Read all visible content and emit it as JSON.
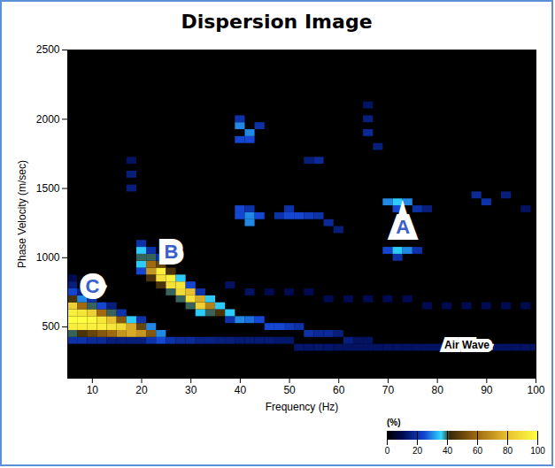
{
  "chart_data": {
    "type": "heatmap",
    "title": "Dispersion Image",
    "x_label": "Frequency (Hz)",
    "y_label": "Phase Velocity (m/sec)",
    "xlim": [
      5,
      100
    ],
    "xticks": [
      10,
      20,
      30,
      40,
      50,
      60,
      70,
      80,
      90,
      100
    ],
    "ylim": [
      130,
      2500
    ],
    "yticks": [
      500,
      1000,
      1500,
      2000,
      2500
    ],
    "colorbar": {
      "range": [
        0,
        100
      ],
      "ticks": [
        0,
        20,
        40,
        60,
        80,
        100
      ],
      "label": "(%)"
    },
    "annotations": [
      {
        "text": "A",
        "x": 73,
        "y": 1220,
        "color": "#3a5fcd"
      },
      {
        "text": "B",
        "x": 26,
        "y": 1040,
        "color": "#3a5fcd"
      },
      {
        "text": "C",
        "x": 10,
        "y": 790,
        "color": "#3a5fcd"
      },
      {
        "text": "Air Wave",
        "x": 86,
        "y": 370,
        "color": "#000000"
      }
    ],
    "cells": [
      [
        6,
        400,
        20
      ],
      [
        6,
        450,
        40
      ],
      [
        6,
        500,
        95
      ],
      [
        6,
        550,
        100
      ],
      [
        6,
        600,
        95
      ],
      [
        6,
        650,
        85
      ],
      [
        6,
        700,
        45
      ],
      [
        6,
        750,
        25
      ],
      [
        6,
        800,
        15
      ],
      [
        6,
        850,
        10
      ],
      [
        8,
        400,
        20
      ],
      [
        8,
        450,
        45
      ],
      [
        8,
        500,
        95
      ],
      [
        8,
        550,
        100
      ],
      [
        8,
        600,
        92
      ],
      [
        8,
        650,
        60
      ],
      [
        8,
        700,
        30
      ],
      [
        8,
        750,
        15
      ],
      [
        10,
        400,
        18
      ],
      [
        10,
        450,
        50
      ],
      [
        10,
        500,
        95
      ],
      [
        10,
        550,
        98
      ],
      [
        10,
        600,
        85
      ],
      [
        10,
        650,
        40
      ],
      [
        10,
        700,
        20
      ],
      [
        12,
        400,
        18
      ],
      [
        12,
        450,
        55
      ],
      [
        12,
        500,
        95
      ],
      [
        12,
        550,
        92
      ],
      [
        12,
        600,
        60
      ],
      [
        12,
        650,
        25
      ],
      [
        14,
        400,
        15
      ],
      [
        14,
        450,
        60
      ],
      [
        14,
        500,
        92
      ],
      [
        14,
        550,
        80
      ],
      [
        14,
        600,
        40
      ],
      [
        14,
        650,
        15
      ],
      [
        16,
        400,
        15
      ],
      [
        16,
        450,
        70
      ],
      [
        16,
        500,
        88
      ],
      [
        16,
        550,
        55
      ],
      [
        16,
        600,
        20
      ],
      [
        18,
        400,
        15
      ],
      [
        18,
        450,
        75
      ],
      [
        18,
        500,
        75
      ],
      [
        18,
        550,
        35
      ],
      [
        18,
        1500,
        15
      ],
      [
        18,
        1600,
        15
      ],
      [
        18,
        1700,
        12
      ],
      [
        20,
        400,
        15
      ],
      [
        20,
        450,
        70
      ],
      [
        20,
        500,
        50
      ],
      [
        20,
        550,
        20
      ],
      [
        20,
        900,
        25
      ],
      [
        20,
        950,
        35
      ],
      [
        20,
        1000,
        40
      ],
      [
        20,
        1050,
        35
      ],
      [
        20,
        1100,
        20
      ],
      [
        22,
        400,
        20
      ],
      [
        22,
        450,
        55
      ],
      [
        22,
        500,
        30
      ],
      [
        22,
        850,
        45
      ],
      [
        22,
        900,
        70
      ],
      [
        22,
        950,
        60
      ],
      [
        22,
        1000,
        40
      ],
      [
        22,
        1050,
        20
      ],
      [
        24,
        400,
        25
      ],
      [
        24,
        450,
        30
      ],
      [
        24,
        800,
        45
      ],
      [
        24,
        850,
        90
      ],
      [
        24,
        900,
        95
      ],
      [
        24,
        950,
        50
      ],
      [
        24,
        1000,
        20
      ],
      [
        26,
        400,
        20
      ],
      [
        26,
        750,
        40
      ],
      [
        26,
        800,
        90
      ],
      [
        26,
        850,
        95
      ],
      [
        26,
        900,
        45
      ],
      [
        28,
        400,
        18
      ],
      [
        28,
        700,
        40
      ],
      [
        28,
        750,
        88
      ],
      [
        28,
        800,
        92
      ],
      [
        28,
        850,
        35
      ],
      [
        30,
        400,
        18
      ],
      [
        30,
        650,
        40
      ],
      [
        30,
        700,
        90
      ],
      [
        30,
        750,
        80
      ],
      [
        30,
        800,
        25
      ],
      [
        32,
        400,
        16
      ],
      [
        32,
        600,
        35
      ],
      [
        32,
        650,
        85
      ],
      [
        32,
        700,
        75
      ],
      [
        32,
        750,
        20
      ],
      [
        34,
        400,
        16
      ],
      [
        34,
        600,
        40
      ],
      [
        34,
        650,
        65
      ],
      [
        34,
        700,
        35
      ],
      [
        36,
        400,
        15
      ],
      [
        36,
        600,
        45
      ],
      [
        36,
        650,
        35
      ],
      [
        38,
        400,
        15
      ],
      [
        38,
        550,
        20
      ],
      [
        38,
        600,
        35
      ],
      [
        38,
        800,
        12
      ],
      [
        40,
        400,
        14
      ],
      [
        40,
        550,
        30
      ],
      [
        40,
        1300,
        25
      ],
      [
        40,
        1350,
        25
      ],
      [
        40,
        1850,
        25
      ],
      [
        40,
        1950,
        30
      ],
      [
        40,
        2000,
        20
      ],
      [
        42,
        400,
        14
      ],
      [
        42,
        550,
        28
      ],
      [
        42,
        750,
        12
      ],
      [
        42,
        1250,
        30
      ],
      [
        42,
        1300,
        30
      ],
      [
        42,
        1350,
        20
      ],
      [
        42,
        1850,
        25
      ],
      [
        42,
        1900,
        30
      ],
      [
        44,
        400,
        14
      ],
      [
        44,
        550,
        25
      ],
      [
        44,
        1300,
        25
      ],
      [
        44,
        1950,
        20
      ],
      [
        46,
        400,
        14
      ],
      [
        46,
        500,
        25
      ],
      [
        46,
        750,
        10
      ],
      [
        48,
        400,
        13
      ],
      [
        48,
        500,
        25
      ],
      [
        48,
        1300,
        20
      ],
      [
        50,
        400,
        13
      ],
      [
        50,
        500,
        22
      ],
      [
        50,
        750,
        10
      ],
      [
        50,
        1300,
        25
      ],
      [
        50,
        1350,
        20
      ],
      [
        52,
        350,
        13
      ],
      [
        52,
        500,
        20
      ],
      [
        52,
        1300,
        25
      ],
      [
        54,
        350,
        13
      ],
      [
        54,
        450,
        20
      ],
      [
        54,
        750,
        10
      ],
      [
        54,
        1300,
        22
      ],
      [
        54,
        1700,
        15
      ],
      [
        56,
        350,
        13
      ],
      [
        56,
        450,
        18
      ],
      [
        56,
        1300,
        20
      ],
      [
        56,
        1700,
        18
      ],
      [
        58,
        350,
        13
      ],
      [
        58,
        450,
        18
      ],
      [
        58,
        700,
        10
      ],
      [
        58,
        1250,
        18
      ],
      [
        60,
        350,
        12
      ],
      [
        60,
        450,
        15
      ],
      [
        60,
        1200,
        15
      ],
      [
        62,
        350,
        12
      ],
      [
        62,
        400,
        15
      ],
      [
        62,
        700,
        10
      ],
      [
        64,
        350,
        12
      ],
      [
        64,
        400,
        12
      ],
      [
        66,
        350,
        12
      ],
      [
        66,
        400,
        12
      ],
      [
        66,
        700,
        10
      ],
      [
        66,
        1900,
        18
      ],
      [
        66,
        2000,
        15
      ],
      [
        66,
        2100,
        12
      ],
      [
        68,
        350,
        12
      ],
      [
        68,
        1800,
        15
      ],
      [
        70,
        350,
        12
      ],
      [
        70,
        700,
        10
      ],
      [
        70,
        1050,
        25
      ],
      [
        70,
        1400,
        30
      ],
      [
        72,
        350,
        12
      ],
      [
        72,
        1000,
        20
      ],
      [
        72,
        1050,
        35
      ],
      [
        72,
        1350,
        25
      ],
      [
        72,
        1400,
        35
      ],
      [
        74,
        350,
        12
      ],
      [
        74,
        700,
        10
      ],
      [
        74,
        1050,
        30
      ],
      [
        74,
        1400,
        30
      ],
      [
        76,
        350,
        12
      ],
      [
        76,
        1050,
        20
      ],
      [
        76,
        1350,
        20
      ],
      [
        78,
        350,
        12
      ],
      [
        78,
        650,
        10
      ],
      [
        78,
        1350,
        15
      ],
      [
        80,
        350,
        12
      ],
      [
        82,
        350,
        12
      ],
      [
        82,
        650,
        10
      ],
      [
        84,
        350,
        12
      ],
      [
        86,
        350,
        12
      ],
      [
        86,
        650,
        10
      ],
      [
        88,
        350,
        12
      ],
      [
        88,
        1450,
        18
      ],
      [
        90,
        350,
        12
      ],
      [
        90,
        650,
        10
      ],
      [
        90,
        1400,
        20
      ],
      [
        92,
        350,
        12
      ],
      [
        94,
        350,
        12
      ],
      [
        94,
        650,
        10
      ],
      [
        94,
        1450,
        15
      ],
      [
        96,
        350,
        12
      ],
      [
        98,
        350,
        12
      ],
      [
        98,
        650,
        10
      ],
      [
        98,
        1350,
        12
      ],
      [
        100,
        350,
        12
      ]
    ]
  }
}
